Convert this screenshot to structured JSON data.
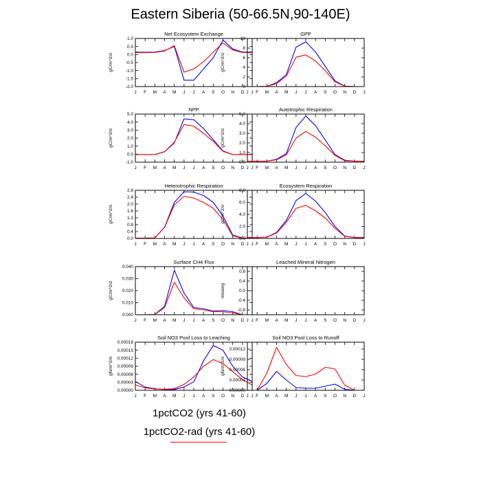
{
  "figure_title": "Eastern Siberia (50-66.5N,90-140E)",
  "months": [
    "J",
    "F",
    "M",
    "A",
    "M",
    "J",
    "J",
    "A",
    "S",
    "O",
    "N",
    "D",
    "J"
  ],
  "legend": [
    {
      "label": "1pctCO2 (yrs 41-60)",
      "color": "#0000ff"
    },
    {
      "label": "1pctCO2-rad (yrs 41-60)",
      "color": "#ff0000"
    }
  ],
  "chart_data": [
    {
      "type": "line",
      "title": "Net Ecosystem Exchange",
      "ylabel": "gC/m^2/d",
      "ylim": [
        -2.0,
        1.0
      ],
      "yticks": [
        -2.0,
        -1.5,
        -1.0,
        -0.5,
        0.0,
        0.5,
        1.0
      ],
      "ytick_labels": [
        "-2.0",
        "-1.5",
        "-1.0",
        "-0.5",
        "0.0",
        "0.5",
        "1.0"
      ],
      "series": [
        {
          "color": "#0000ff",
          "values": [
            0.15,
            0.14,
            0.15,
            0.25,
            0.5,
            -1.6,
            -1.6,
            -0.9,
            -0.2,
            0.9,
            0.35,
            0.15,
            0.15
          ]
        },
        {
          "color": "#ff0000",
          "values": [
            0.12,
            0.12,
            0.13,
            0.22,
            0.55,
            -1.1,
            -0.9,
            -0.45,
            0.15,
            0.72,
            0.28,
            0.13,
            0.12
          ]
        }
      ]
    },
    {
      "type": "line",
      "title": "GPP",
      "ylabel": "gC/m^2/d",
      "ylim": [
        0,
        10
      ],
      "yticks": [
        0,
        2,
        4,
        6,
        8,
        10
      ],
      "ytick_labels": [
        "0",
        "2",
        "4",
        "6",
        "8",
        "10"
      ],
      "series": [
        {
          "color": "#0000ff",
          "values": [
            0,
            0,
            0.05,
            0.8,
            2.5,
            8.2,
            9.3,
            7.2,
            4.2,
            1.2,
            0.1,
            0,
            0
          ]
        },
        {
          "color": "#ff0000",
          "values": [
            0,
            0,
            0.05,
            0.6,
            2.2,
            6.1,
            6.6,
            5.3,
            3.3,
            1.0,
            0.08,
            0,
            0
          ]
        }
      ]
    },
    {
      "type": "line",
      "title": "NPP",
      "ylabel": "gC/m^2/d",
      "ylim": [
        -1.0,
        5.0
      ],
      "yticks": [
        -1.0,
        0.0,
        1.0,
        2.0,
        3.0,
        4.0,
        5.0
      ],
      "ytick_labels": [
        "-1.0",
        "0.0",
        "1.0",
        "2.0",
        "3.0",
        "4.0",
        "5.0"
      ],
      "series": [
        {
          "color": "#0000ff",
          "values": [
            -0.05,
            -0.05,
            -0.05,
            0.3,
            1.4,
            4.4,
            4.3,
            3.2,
            1.8,
            0.4,
            -0.05,
            -0.05,
            -0.05
          ]
        },
        {
          "color": "#ff0000",
          "values": [
            -0.05,
            -0.05,
            -0.05,
            0.3,
            1.5,
            3.7,
            3.5,
            2.6,
            1.6,
            0.35,
            -0.05,
            -0.05,
            -0.05
          ]
        }
      ]
    },
    {
      "type": "line",
      "title": "Autotrophic Respiration",
      "ylabel": "gC/m^2/d",
      "ylim": [
        0.0,
        5.0
      ],
      "yticks": [
        0.0,
        1.0,
        2.0,
        3.0,
        4.0,
        5.0
      ],
      "ytick_labels": [
        "0.0",
        "1.0",
        "2.0",
        "3.0",
        "4.0",
        "5.0"
      ],
      "series": [
        {
          "color": "#0000ff",
          "values": [
            0.1,
            0.1,
            0.1,
            0.3,
            0.9,
            3.6,
            4.8,
            3.8,
            2.3,
            0.8,
            0.2,
            0.1,
            0.1
          ]
        },
        {
          "color": "#ff0000",
          "values": [
            0.1,
            0.1,
            0.1,
            0.25,
            0.75,
            2.5,
            3.2,
            2.6,
            1.7,
            0.7,
            0.15,
            0.1,
            0.1
          ]
        }
      ]
    },
    {
      "type": "line",
      "title": "Heterotrophic Respiration",
      "ylabel": "gC/m^2/d",
      "ylim": [
        0.0,
        2.8
      ],
      "yticks": [
        0.0,
        0.4,
        0.8,
        1.2,
        1.6,
        2.0,
        2.4,
        2.8
      ],
      "ytick_labels": [
        "0.0",
        "0.4",
        "0.8",
        "1.2",
        "1.6",
        "2.0",
        "2.4",
        "2.8"
      ],
      "series": [
        {
          "color": "#0000ff",
          "values": [
            0.02,
            0.02,
            0.03,
            0.65,
            2.1,
            2.72,
            2.7,
            2.5,
            2.1,
            1.3,
            0.2,
            0.02,
            0.02
          ]
        },
        {
          "color": "#ff0000",
          "values": [
            0.02,
            0.02,
            0.03,
            0.65,
            1.95,
            2.45,
            2.35,
            2.1,
            1.75,
            1.1,
            0.15,
            0.02,
            0.02
          ]
        }
      ]
    },
    {
      "type": "line",
      "title": "Ecosystem Respiration",
      "ylabel": "gC/m^2/d",
      "ylim": [
        0.0,
        8.0
      ],
      "yticks": [
        0.0,
        2.0,
        4.0,
        6.0,
        8.0
      ],
      "ytick_labels": [
        "0.0",
        "2.0",
        "4.0",
        "6.0",
        "8.0"
      ],
      "series": [
        {
          "color": "#0000ff",
          "values": [
            0.15,
            0.15,
            0.2,
            1.0,
            3.0,
            6.3,
            7.5,
            6.2,
            4.3,
            2.0,
            0.4,
            0.15,
            0.15
          ]
        },
        {
          "color": "#ff0000",
          "values": [
            0.15,
            0.15,
            0.2,
            0.9,
            2.7,
            5.0,
            5.5,
            4.6,
            3.4,
            1.7,
            0.35,
            0.15,
            0.15
          ]
        }
      ]
    },
    {
      "type": "line",
      "title": "Surface CH4 Flux",
      "ylabel": "gC/m^2/d",
      "ylim": [
        0.0,
        0.04
      ],
      "yticks": [
        0.0,
        0.01,
        0.02,
        0.03,
        0.04
      ],
      "ytick_labels": [
        "0.000",
        "0.010",
        "0.020",
        "0.030",
        "0.040"
      ],
      "series": [
        {
          "color": "#0000ff",
          "values": [
            0,
            0,
            0.0002,
            0.007,
            0.037,
            0.018,
            0.006,
            0.005,
            0.003,
            0.0035,
            0.0025,
            0,
            0
          ]
        },
        {
          "color": "#ff0000",
          "values": [
            0,
            0,
            0.0002,
            0.006,
            0.027,
            0.014,
            0.005,
            0.004,
            0.0025,
            0.0025,
            0.0015,
            0,
            0
          ]
        }
      ]
    },
    {
      "type": "line",
      "title": "Leached Mineral Nitrogen",
      "ylabel": "missing",
      "ylim": [
        -1.0,
        1.0
      ],
      "yticks": [
        -0.8,
        -0.4,
        0.0,
        0.4,
        0.8
      ],
      "ytick_labels": [
        "-0.8",
        "-0.4",
        "0.0",
        "0.4",
        "0.8"
      ],
      "series": []
    },
    {
      "type": "line",
      "title": "Soil NO3 Pool Loss to Leaching",
      "ylabel": "gN/m^2/d",
      "ylim": [
        0.0,
        0.00018
      ],
      "yticks": [
        0.0,
        3e-05,
        6e-05,
        9e-05,
        0.00012,
        0.00015,
        0.00018
      ],
      "ytick_labels": [
        "0.00000",
        "0.00003",
        "0.00006",
        "0.00009",
        "0.00012",
        "0.00015",
        "0.00018"
      ],
      "series": [
        {
          "color": "#0000ff",
          "values": [
            3.3e-05,
            1.2e-05,
            6e-06,
            3e-06,
            3e-06,
            1.2e-05,
            3.2e-05,
            0.00011,
            0.000168,
            0.00015,
            9e-05,
            5e-05,
            3.3e-05
          ]
        },
        {
          "color": "#ff0000",
          "values": [
            2e-05,
            9e-06,
            5e-06,
            4e-06,
            6e-06,
            2.2e-05,
            5e-05,
            9e-05,
            0.000115,
            0.0001,
            7e-05,
            4e-05,
            2e-05
          ]
        }
      ]
    },
    {
      "type": "line",
      "title": "Soil NO3 Pool Loss to Runoff",
      "ylabel": "gN/m^2/d",
      "ylim": [
        0.0,
        0.00014
      ],
      "yticks": [
        0.0,
        3e-05,
        6e-05,
        9e-05,
        0.00012
      ],
      "ytick_labels": [
        "0.00000",
        "0.00003",
        "0.00006",
        "0.00009",
        "0.00012"
      ],
      "series": [
        {
          "color": "#0000ff",
          "values": [
            0,
            0,
            2e-05,
            5.5e-05,
            3e-05,
            8e-06,
            6e-06,
            6e-06,
            1.2e-05,
            1.8e-05,
            3e-06,
            0,
            0
          ]
        },
        {
          "color": "#ff0000",
          "values": [
            0,
            0,
            5e-05,
            0.000125,
            7.5e-05,
            4.3e-05,
            4e-05,
            4.7e-05,
            6.7e-05,
            6.2e-05,
            1.5e-05,
            0,
            0
          ]
        }
      ]
    }
  ]
}
